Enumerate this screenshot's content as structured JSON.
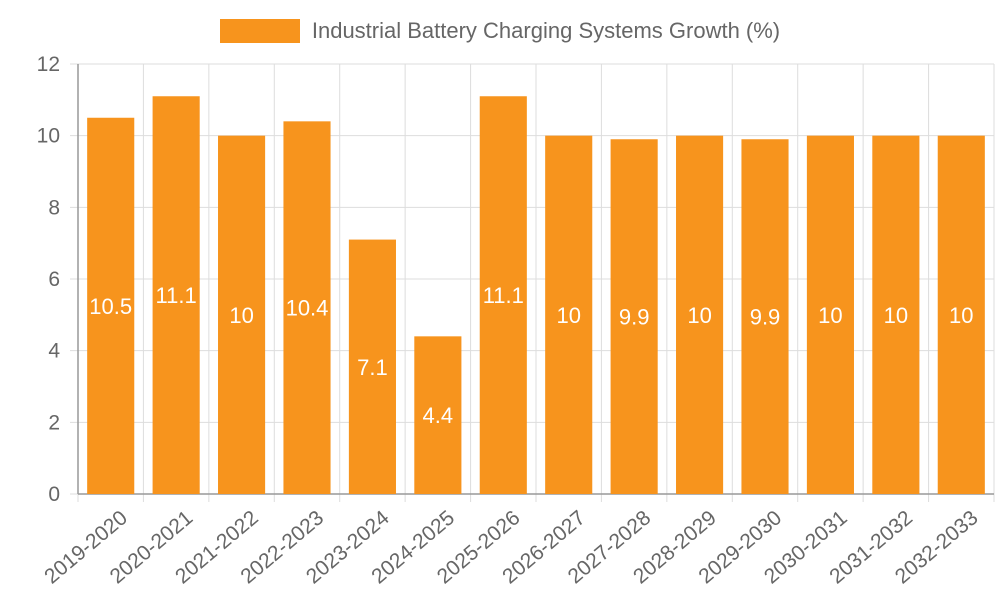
{
  "colors": {
    "bar": "#f7941d",
    "grid": "#dddddd",
    "axis": "#999999",
    "text": "#666666",
    "data_label": "#ffffff"
  },
  "chart_data": {
    "type": "bar",
    "title": "",
    "xlabel": "",
    "ylabel": "",
    "categories": [
      "2019-2020",
      "2020-2021",
      "2021-2022",
      "2022-2023",
      "2023-2024",
      "2024-2025",
      "2025-2026",
      "2026-2027",
      "2027-2028",
      "2028-2029",
      "2029-2030",
      "2030-2031",
      "2031-2032",
      "2032-2033"
    ],
    "series": [
      {
        "name": "Industrial Battery Charging Systems Growth (%)",
        "values": [
          10.5,
          11.1,
          10,
          10.4,
          7.1,
          4.4,
          11.1,
          10,
          9.9,
          10,
          9.9,
          10,
          10,
          10
        ]
      }
    ],
    "ylim": [
      0,
      12
    ],
    "yticks": [
      0,
      2,
      4,
      6,
      8,
      10,
      12
    ],
    "grid": true,
    "legend": "top-center",
    "data_labels": true
  }
}
